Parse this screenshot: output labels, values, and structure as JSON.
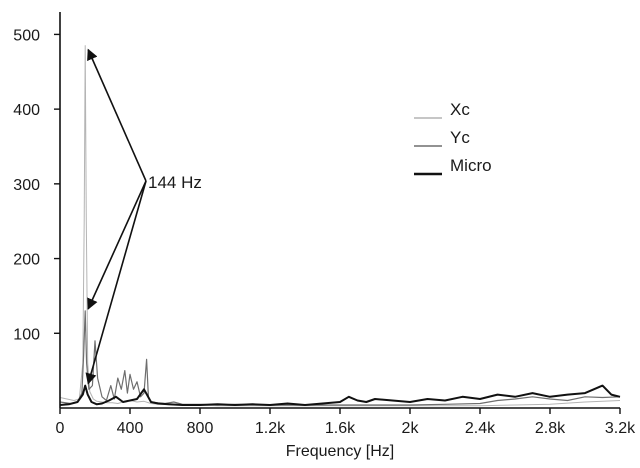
{
  "chart_data": {
    "type": "line",
    "title": "",
    "xlabel": "Frequency [Hz]",
    "ylabel": "",
    "xlim": [
      0,
      3200
    ],
    "ylim": [
      0,
      530
    ],
    "x_ticks": [
      0,
      400,
      800,
      1200,
      1600,
      2000,
      2400,
      2800,
      3200
    ],
    "x_tick_labels": [
      "0",
      "400",
      "800",
      "1.2k",
      "1.6k",
      "2k",
      "2.4k",
      "2.8k",
      "3.2k"
    ],
    "y_ticks": [
      100,
      200,
      300,
      400,
      500
    ],
    "y_tick_labels": [
      "100",
      "200",
      "300",
      "400",
      "500"
    ],
    "grid": false,
    "legend_position": "top-right",
    "annotation": {
      "text": "144 Hz",
      "x": 144,
      "points": [
        485,
        130,
        30
      ]
    },
    "series": [
      {
        "name": "Xc",
        "color": "#b4b4b4",
        "width": 1,
        "x": [
          0,
          40,
          80,
          110,
          130,
          138,
          144,
          150,
          158,
          170,
          190,
          210,
          240,
          270,
          300,
          330,
          360,
          400,
          440,
          480,
          520,
          560,
          600,
          650,
          700,
          800,
          900,
          1000,
          1100,
          1200,
          1400,
          1600,
          1800,
          2000,
          2200,
          2400,
          2600,
          2800,
          3000,
          3200
        ],
        "y": [
          14,
          12,
          10,
          12,
          60,
          250,
          485,
          250,
          60,
          22,
          12,
          9,
          8,
          7,
          7,
          6,
          8,
          10,
          8,
          9,
          6,
          5,
          5,
          4,
          4,
          4,
          3,
          3,
          3,
          3,
          3,
          3,
          3,
          3,
          3,
          3,
          4,
          5,
          8,
          10
        ]
      },
      {
        "name": "Yc",
        "color": "#6e6e6e",
        "width": 1.2,
        "x": [
          0,
          60,
          100,
          125,
          135,
          144,
          152,
          165,
          185,
          200,
          215,
          240,
          265,
          290,
          310,
          330,
          350,
          370,
          385,
          400,
          420,
          440,
          460,
          480,
          495,
          505,
          520,
          560,
          600,
          650,
          700,
          800,
          900,
          1000,
          1200,
          1400,
          1600,
          1800,
          2000,
          2200,
          2400,
          2500,
          2600,
          2700,
          2800,
          2900,
          3000,
          3100,
          3200
        ],
        "y": [
          8,
          6,
          8,
          20,
          70,
          130,
          60,
          25,
          30,
          90,
          40,
          15,
          10,
          30,
          12,
          40,
          25,
          50,
          20,
          45,
          25,
          35,
          15,
          20,
          65,
          15,
          8,
          7,
          6,
          8,
          5,
          5,
          4,
          5,
          4,
          4,
          4,
          4,
          4,
          5,
          6,
          10,
          12,
          15,
          12,
          10,
          15,
          14,
          15
        ]
      },
      {
        "name": "Micro",
        "color": "#111111",
        "width": 2,
        "x": [
          0,
          50,
          100,
          130,
          144,
          158,
          180,
          210,
          240,
          280,
          320,
          360,
          400,
          440,
          480,
          520,
          560,
          620,
          700,
          800,
          900,
          1000,
          1100,
          1200,
          1300,
          1400,
          1500,
          1600,
          1650,
          1700,
          1750,
          1800,
          1900,
          2000,
          2100,
          2200,
          2300,
          2400,
          2500,
          2600,
          2700,
          2800,
          2900,
          3000,
          3050,
          3100,
          3150,
          3200
        ],
        "y": [
          4,
          5,
          8,
          18,
          30,
          18,
          8,
          5,
          6,
          10,
          15,
          8,
          10,
          12,
          25,
          8,
          6,
          5,
          4,
          4,
          5,
          4,
          5,
          4,
          6,
          4,
          6,
          8,
          15,
          10,
          8,
          12,
          10,
          8,
          12,
          10,
          15,
          12,
          18,
          15,
          20,
          15,
          18,
          20,
          25,
          30,
          18,
          15
        ]
      }
    ]
  }
}
